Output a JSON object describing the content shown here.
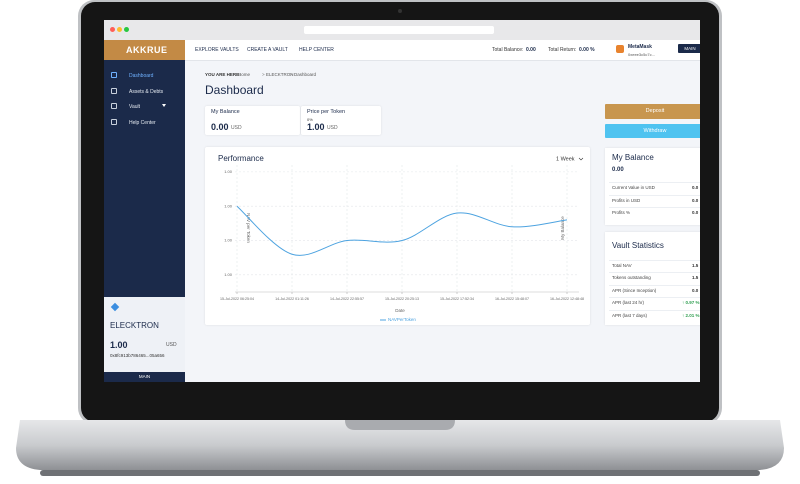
{
  "nav": {
    "logo": "AKKRUE",
    "links": [
      "EXPLORE VAULTS",
      "CREATE A VAULT",
      "HELP CENTER"
    ],
    "total_balance": "Total Balance:",
    "total_balance_value": "0.00",
    "total_return": "Total Return:",
    "total_return_value": "0.00 %",
    "wallet": "MetaMask",
    "address": "0xeee3c5c7c...",
    "network": "MAIN"
  },
  "sidebar": {
    "items": [
      "Dashboard",
      "Assets & Debts",
      "Vault",
      "Help Center"
    ],
    "token": {
      "name": "ELECKTRON",
      "price": "1.00",
      "unit": "USD",
      "address": "0x8fc913b786465...05a656"
    },
    "footer": "MAIN"
  },
  "breadcrumb": {
    "label": "YOU ARE HERE:",
    "items": [
      "Home",
      "ELECKTRON",
      "Dashboard"
    ]
  },
  "title": "Dashboard",
  "cards": [
    {
      "title": "My Balance",
      "value": "0.00",
      "unit": "USD"
    },
    {
      "title": "Price per Token",
      "change": "0%",
      "value": "1.00",
      "unit": "USD"
    }
  ],
  "actions": [
    "Deposit",
    "Withdraw"
  ],
  "balance_panel": {
    "title": "My Balance",
    "value": "0.00",
    "rows": [
      [
        "Current Value in USD",
        "0.0"
      ],
      [
        "Profits in USD",
        "0.0"
      ],
      [
        "Profits %",
        "0.0"
      ]
    ]
  },
  "stats_panel": {
    "title": "Vault Statistics",
    "rows": [
      [
        "Total NAV",
        "1.5"
      ],
      [
        "Tokens outstanding",
        "1.5"
      ],
      [
        "APR (Since Inception)",
        "0.0"
      ],
      [
        "APR (last 24 hr)",
        "↑ 0.97 %"
      ],
      [
        "APR (last 7 days)",
        "↑ 2.01 %"
      ]
    ]
  },
  "chart_data": {
    "type": "line",
    "title": "Performance",
    "range": "1 Week",
    "x_label": "Date",
    "y_label": "NAV per Token",
    "y2_label": "My Balance",
    "categories": [
      "15-Jul-2022 06:25:04",
      "14-Jul-2022 01:11:26",
      "14-Jul-2022 22:55:57",
      "15-Jul-2022 20:25:13",
      "15-Jul-2022 17:52:34",
      "16-Jul-2022 15:48:07",
      "16-Jul-2022 12:48:48"
    ],
    "series": [
      {
        "name": "NAVPerToken",
        "color": "#4da3e0",
        "values": [
          1.002,
          1.0006,
          1.001,
          1.001,
          1.0018,
          1.0014,
          1.0016
        ]
      }
    ],
    "ylim": [
      0.9995,
      1.0032
    ],
    "yticks": [
      {
        "value": 1.003,
        "label": "1.00"
      },
      {
        "value": 1.002,
        "label": "1.00"
      },
      {
        "value": 1.001,
        "label": "1.00"
      },
      {
        "value": 1.0,
        "label": "1.00"
      }
    ],
    "grid": true
  }
}
